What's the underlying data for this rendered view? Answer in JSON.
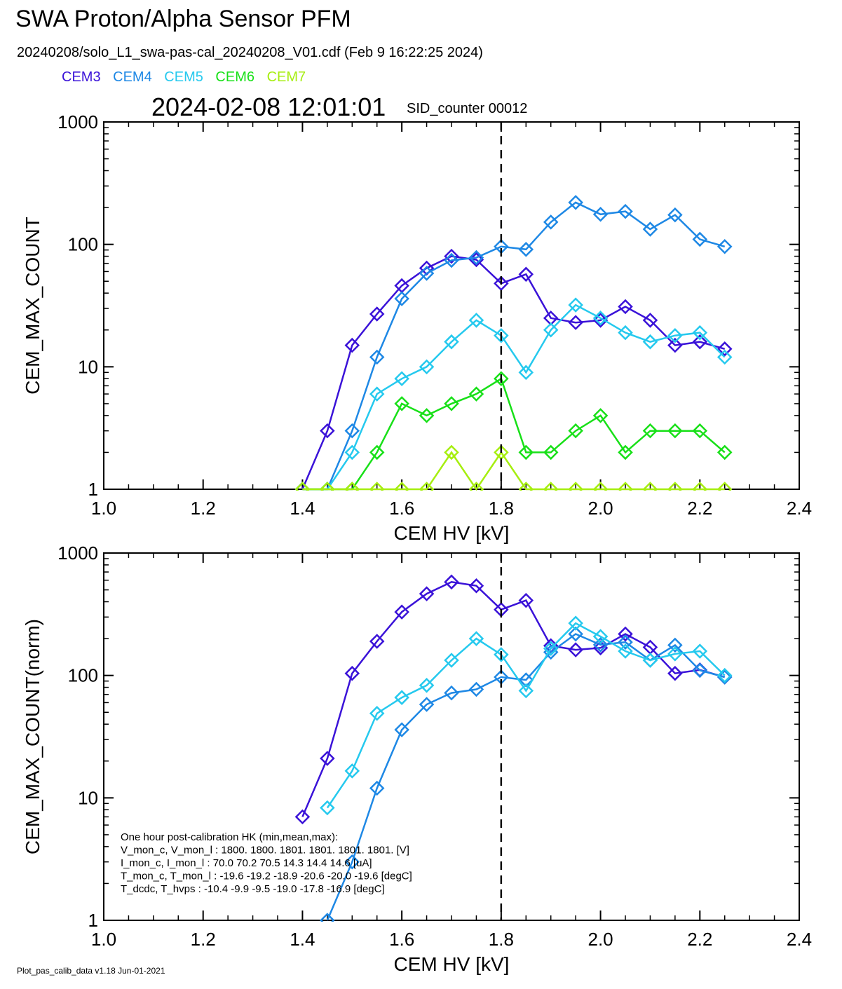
{
  "header": {
    "title": "SWA Proton/Alpha Sensor PFM",
    "subtitle": "20240208/solo_L1_swa-pas-cal_20240208_V01.cdf  (Feb  9 16:22:25 2024)",
    "timestamp": "2024-02-08 12:01:01",
    "sid": "SID_counter 00012"
  },
  "legend": [
    {
      "name": "CEM3",
      "color": "#3a12d8"
    },
    {
      "name": "CEM4",
      "color": "#1e88e5"
    },
    {
      "name": "CEM5",
      "color": "#25c9ee"
    },
    {
      "name": "CEM6",
      "color": "#18e018"
    },
    {
      "name": "CEM7",
      "color": "#a6ee10"
    }
  ],
  "footer": "Plot_pas_calib_data v1.18 Jun-01-2021",
  "hk": {
    "lines": [
      "One hour post-calibration HK (min,mean,max):",
      "V_mon_c, V_mon_l :   1800.  1800.  1801.        1801.  1801.  1801. [V]",
      "I_mon_c,  I_mon_l :     70.0   70.2   70.5         14.3   14.4   14.6  [uA]",
      "T_mon_c, T_mon_l :   -19.6  -19.2  -18.9         -20.6  -20.0  -19.6  [degC]",
      "T_dcdc,    T_hvps :    -10.4   -9.9   -9.5          -19.0  -17.8  -16.9  [degC]"
    ]
  },
  "chart_data": [
    {
      "type": "line",
      "xlabel": "CEM HV [kV]",
      "ylabel": "CEM_MAX_COUNT",
      "xlim": [
        1.0,
        2.4
      ],
      "ylim": [
        1,
        1000
      ],
      "yscale": "log",
      "xticks": [
        "1.0",
        "1.2",
        "1.4",
        "1.6",
        "1.8",
        "2.0",
        "2.2",
        "2.4"
      ],
      "yticks": [
        "1",
        "10",
        "100",
        "1000"
      ],
      "vline_x": 1.8,
      "x": [
        1.4,
        1.45,
        1.5,
        1.55,
        1.6,
        1.65,
        1.7,
        1.75,
        1.8,
        1.85,
        1.9,
        1.95,
        2.0,
        2.05,
        2.1,
        2.15,
        2.2,
        2.25
      ],
      "series": [
        {
          "name": "CEM3",
          "color": "#3a12d8",
          "values": [
            1,
            3,
            15,
            27,
            46,
            64,
            80,
            75,
            48,
            57,
            25,
            23,
            24,
            31,
            24,
            15,
            16,
            14
          ]
        },
        {
          "name": "CEM4",
          "color": "#1e88e5",
          "values": [
            1,
            1,
            3,
            12,
            36,
            58,
            74,
            78,
            96,
            91,
            152,
            220,
            176,
            186,
            133,
            174,
            110,
            96
          ]
        },
        {
          "name": "CEM5",
          "color": "#25c9ee",
          "values": [
            1,
            1,
            2,
            6,
            8,
            10,
            16,
            24,
            18,
            9,
            20,
            32,
            25,
            19,
            16,
            18,
            19,
            12
          ]
        },
        {
          "name": "CEM6",
          "color": "#18e018",
          "values": [
            1,
            1,
            1,
            2,
            5,
            4,
            5,
            6,
            8,
            2,
            2,
            3,
            4,
            2,
            3,
            3,
            3,
            2
          ]
        },
        {
          "name": "CEM7",
          "color": "#a6ee10",
          "values": [
            1,
            1,
            1,
            1,
            1,
            1,
            2,
            1,
            2,
            1,
            1,
            1,
            1,
            1,
            1,
            1,
            1,
            1
          ]
        }
      ]
    },
    {
      "type": "line",
      "xlabel": "CEM HV [kV]",
      "ylabel": "CEM_MAX_COUNT(norm)",
      "xlim": [
        1.0,
        2.4
      ],
      "ylim": [
        1,
        1000
      ],
      "yscale": "log",
      "xticks": [
        "1.0",
        "1.2",
        "1.4",
        "1.6",
        "1.8",
        "2.0",
        "2.2",
        "2.4"
      ],
      "yticks": [
        "1",
        "10",
        "100",
        "1000"
      ],
      "vline_x": 1.8,
      "x": [
        1.4,
        1.45,
        1.5,
        1.55,
        1.6,
        1.65,
        1.7,
        1.75,
        1.8,
        1.85,
        1.9,
        1.95,
        2.0,
        2.05,
        2.1,
        2.15,
        2.2,
        2.25
      ],
      "series": [
        {
          "name": "CEM3",
          "color": "#3a12d8",
          "values": [
            7,
            21,
            104,
            190,
            330,
            465,
            580,
            540,
            345,
            410,
            175,
            162,
            168,
            218,
            170,
            104,
            111,
            97
          ]
        },
        {
          "name": "CEM4",
          "color": "#1e88e5",
          "values": [
            null,
            1,
            3,
            12,
            36,
            58,
            72,
            77,
            97,
            92,
            155,
            218,
            178,
            187,
            133,
            177,
            110,
            97
          ]
        },
        {
          "name": "CEM5",
          "color": "#25c9ee",
          "values": [
            null,
            8.3,
            16.6,
            49,
            66,
            83,
            133,
            200,
            148,
            75,
            166,
            267,
            208,
            158,
            133,
            150,
            158,
            100
          ]
        }
      ]
    }
  ]
}
